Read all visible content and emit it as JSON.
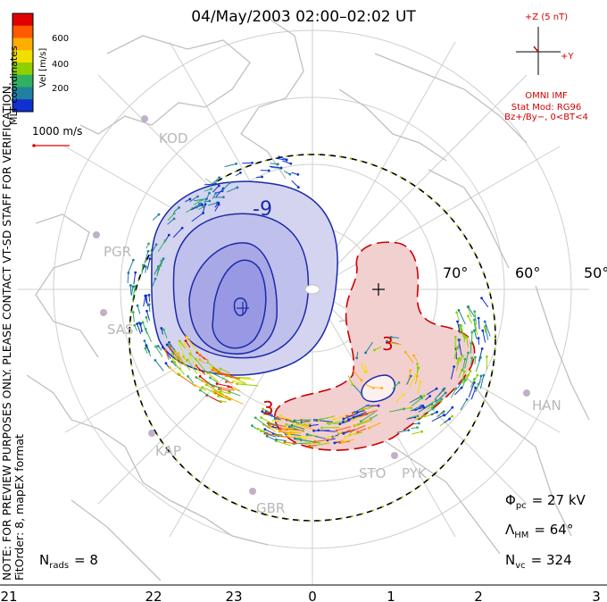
{
  "title": "04/May/2003 02:00–02:02 UT",
  "coordinate_label": "MLT coordinates",
  "notice_line1": "NOTE: FOR PREVIEW PURPOSES ONLY. PLEASE CONTACT VT-SD STAFF FOR VERIFICATION.",
  "notice_line2": "FitOrder: 8, mapEX format",
  "color_scale": {
    "label": "Vel [m/s]",
    "ticks": [
      "600",
      "400",
      "200"
    ],
    "colors": [
      "#e00000",
      "#ff5a00",
      "#ffae00",
      "#f0e000",
      "#90d000",
      "#30b060",
      "#2080a0",
      "#1030d0"
    ]
  },
  "vector_scale": {
    "label": "1000 m/s"
  },
  "imf": {
    "plus_z": "+Z (5 nT)",
    "plus_y": "+Y",
    "source": "OMNI IMF",
    "stat_mod": "Stat Mod: RG96",
    "condition": "Bz+/By−, 0<BT<4"
  },
  "latitude_labels": [
    "70°",
    "60°",
    "50°"
  ],
  "mlt_labels": [
    "21",
    "22",
    "23",
    "0",
    "1",
    "2",
    "3"
  ],
  "contour_labels": {
    "negative": "-9",
    "positive": "3",
    "negative_low": "3"
  },
  "stations": [
    "KOD",
    "PGR",
    "SAS",
    "KAP",
    "GBR",
    "STO",
    "PYK",
    "HAN"
  ],
  "stats": {
    "phi_label": "Φ",
    "phi_sub": "pc",
    "phi_value": "=  27 kV",
    "lambda_label": "Λ",
    "lambda_sub": "HM",
    "lambda_value": "=  64°",
    "nvc_label": "N",
    "nvc_sub": "vc",
    "nvc_value": "=  324",
    "nrads_label": "N",
    "nrads_sub": "rads",
    "nrads_value": "=  8"
  },
  "colors": {
    "negative_fill": "#c8c8ee",
    "negative_fill_inner": "#a0a0e8",
    "positive_fill": "#f2c8c8",
    "contour_neg": "#1a2aa8",
    "contour_pos": "#cc0000",
    "grid": "#cfcfcf",
    "coast": "#c0c0c0"
  }
}
